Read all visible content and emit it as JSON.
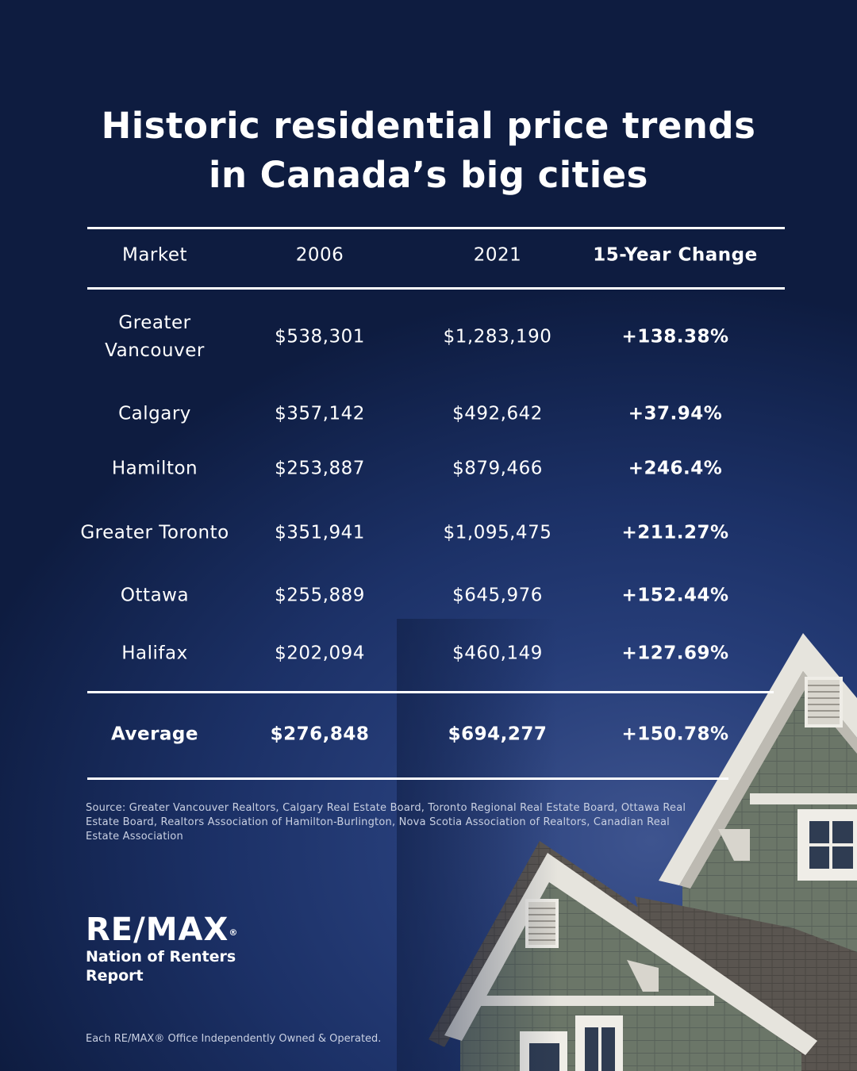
{
  "title": {
    "line1": "Historic residential price trends",
    "line2": "in Canada’s big cities"
  },
  "chart_data": {
    "type": "table",
    "columns": [
      "Market",
      "2006",
      "2021",
      "15-Year Change"
    ],
    "rows": [
      {
        "market": "Greater Vancouver",
        "y2006": "$538,301",
        "y2021": "$1,283,190",
        "change": "+138.38%"
      },
      {
        "market": "Calgary",
        "y2006": "$357,142",
        "y2021": "$492,642",
        "change": "+37.94%"
      },
      {
        "market": "Hamilton",
        "y2006": "$253,887",
        "y2021": "$879,466",
        "change": "+246.4%"
      },
      {
        "market": "Greater Toronto",
        "y2006": "$351,941",
        "y2021": "$1,095,475",
        "change": "+211.27%"
      },
      {
        "market": "Ottawa",
        "y2006": "$255,889",
        "y2021": "$645,976",
        "change": "+152.44%"
      },
      {
        "market": "Halifax",
        "y2006": "$202,094",
        "y2021": "$460,149",
        "change": "+127.69%"
      }
    ],
    "average": {
      "market": "Average",
      "y2006": "$276,848",
      "y2021": "$694,277",
      "change": "+150.78%"
    }
  },
  "source": "Source: Greater Vancouver Realtors, Calgary Real Estate Board, Toronto Regional Real Estate Board, Ottawa Real Estate  Board, Realtors Association of Hamilton-Burlington, Nova Scotia Association of Realtors, Canadian Real Estate Association",
  "logo": {
    "wordmark": "RE/MAX",
    "registered": "®",
    "subtitle": "Nation of Renters Report"
  },
  "footer": "Each RE/MAX® Office Independently Owned & Operated.",
  "colors": {
    "background": "#1c3167",
    "text": "#ffffff",
    "siding": "#6b7668",
    "trim": "#e6e4dd",
    "roof": "#5a5550"
  },
  "image": {
    "icon": "house-roofs-illustration"
  }
}
